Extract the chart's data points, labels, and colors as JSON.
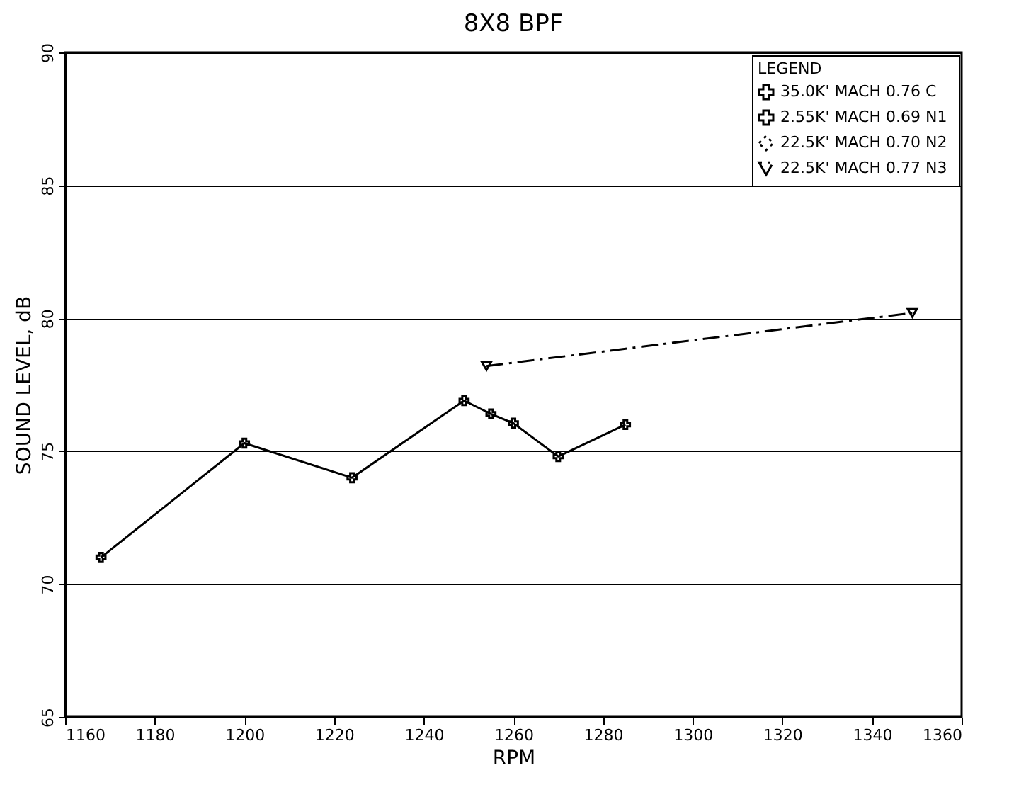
{
  "chart_data": {
    "type": "line",
    "title": "8X8 BPF",
    "xlabel": "RPM",
    "ylabel": "SOUND LEVEL, dB",
    "legend_title": "LEGEND",
    "xlim": [
      1160,
      1360
    ],
    "xticks": [
      1160,
      1180,
      1200,
      1220,
      1240,
      1260,
      1280,
      1300,
      1320,
      1340,
      1360
    ],
    "ylim": [
      65,
      90
    ],
    "yticks": [
      65,
      70,
      75,
      80,
      85,
      90
    ],
    "grid": "y",
    "legend": "top right",
    "series": [
      {
        "name": "35.0K' MACH 0.76  C",
        "color": "#000000",
        "marker": "cross",
        "line_style": "solid",
        "x": [
          1168,
          1200,
          1224,
          1249,
          1255,
          1260,
          1270,
          1285
        ],
        "values": [
          71.0,
          75.3,
          74.0,
          76.9,
          76.4,
          76.05,
          74.8,
          76.0
        ]
      },
      {
        "name": "2.55K' MACH 0.69  N1",
        "color": "#000000",
        "marker": "cross",
        "line_style": "solid"
      },
      {
        "name": "22.5K' MACH 0.70  N2",
        "color": "#000000",
        "marker": "diamond",
        "line_style": "dotted"
      },
      {
        "name": "22.5K' MACH 0.77  N3",
        "color": "#000000",
        "marker": "triangle",
        "line_style": "dashed",
        "x": [
          1254,
          1349
        ],
        "values": [
          78.2,
          80.2
        ]
      }
    ]
  }
}
